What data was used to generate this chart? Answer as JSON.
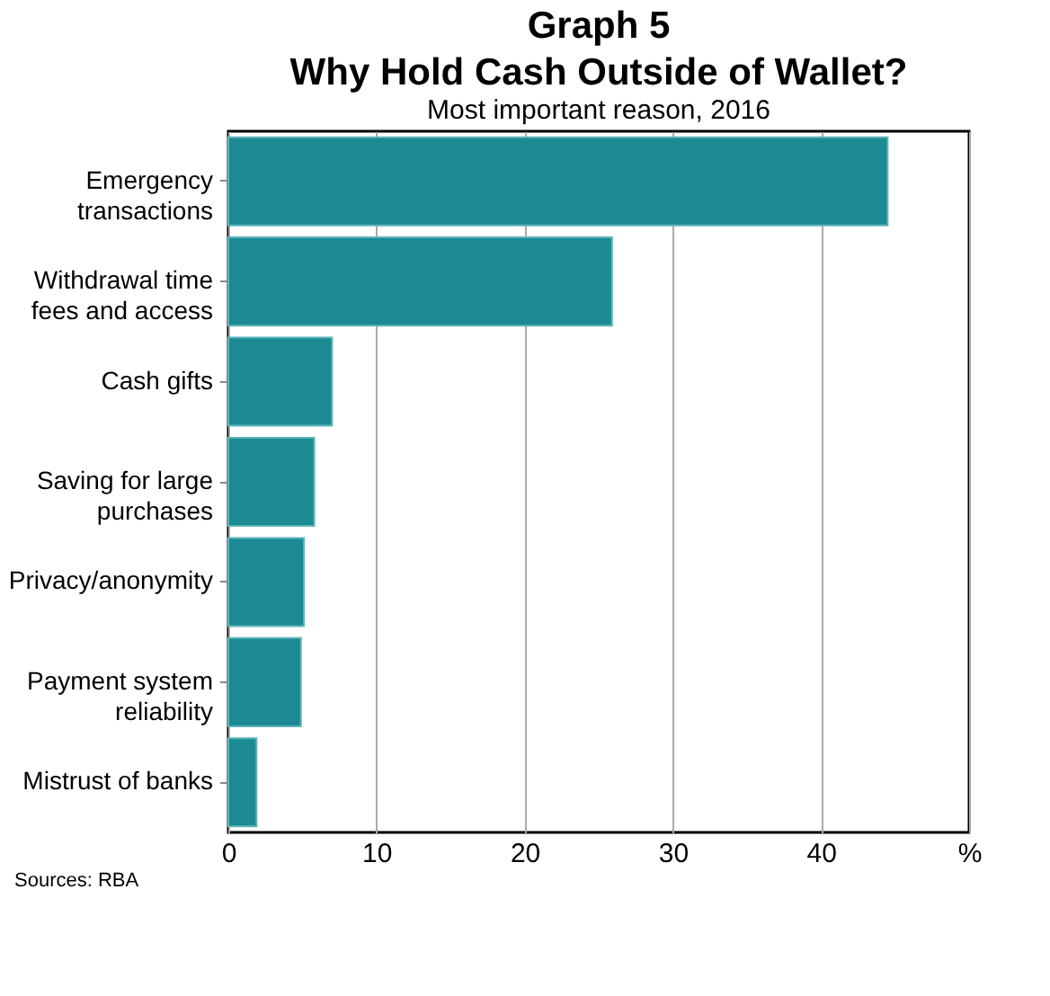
{
  "chart_data": {
    "type": "bar",
    "orientation": "horizontal",
    "title": "Graph 5\nWhy Hold Cash Outside of Wallet?",
    "subtitle": "Most important reason, 2016",
    "categories": [
      "Emergency transactions",
      "Withdrawal time fees and access",
      "Cash gifts",
      "Saving for large purchases",
      "Privacy/anonymity",
      "Payment system reliability",
      "Mistrust of banks"
    ],
    "values": [
      44.5,
      25.9,
      7.0,
      5.8,
      5.1,
      4.9,
      1.9
    ],
    "color": "#1b8a93",
    "xlim": [
      0,
      50
    ],
    "xticks": [
      0,
      10,
      20,
      30,
      40,
      {
        "value": 50,
        "label": "%"
      }
    ],
    "grid": "x",
    "annotations": [
      "Sources: RBA"
    ]
  }
}
